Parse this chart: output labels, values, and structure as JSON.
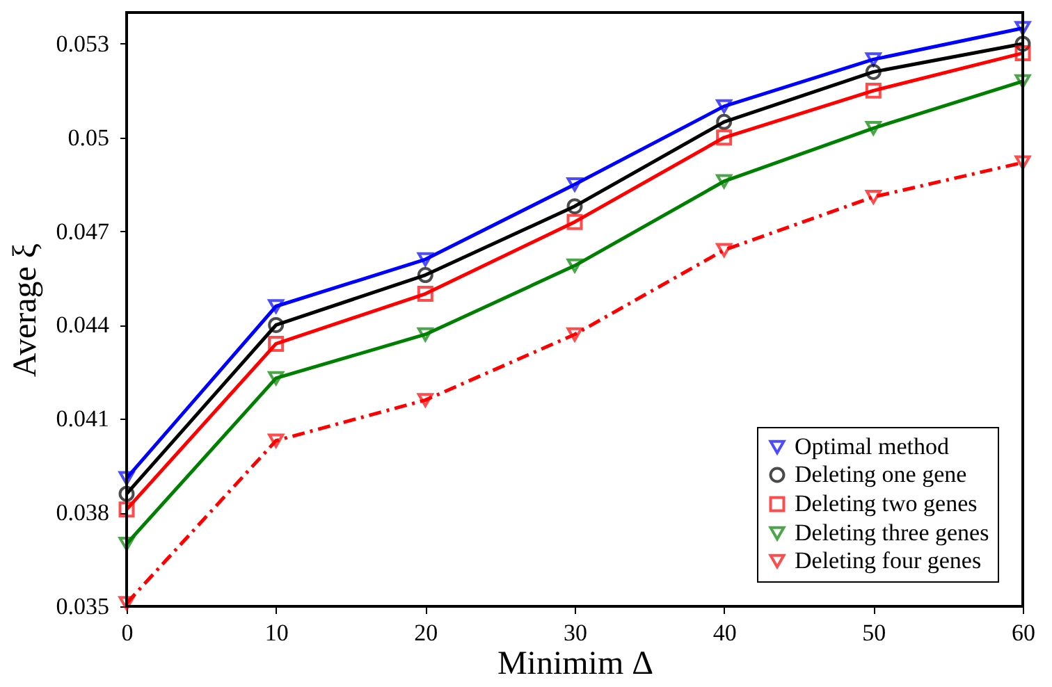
{
  "chart_data": {
    "type": "line",
    "xlabel": "Minimim Δ",
    "ylabel": "Average ξ",
    "x": [
      0,
      10,
      20,
      30,
      40,
      50,
      60
    ],
    "xlim": [
      0,
      60
    ],
    "xticks": [
      0,
      10,
      20,
      30,
      40,
      50,
      60
    ],
    "ylim": [
      0.035,
      0.054
    ],
    "yticks": [
      0.035,
      0.038,
      0.041,
      0.044,
      0.047,
      0.05,
      0.053
    ],
    "grid": false,
    "legend": "bottom right",
    "series": [
      {
        "name": "Optimal method",
        "color": "#0000ff",
        "marker": "triangle",
        "line_style": "solid",
        "values": [
          0.0391,
          0.0446,
          0.0461,
          0.0485,
          0.051,
          0.0525,
          0.0535
        ]
      },
      {
        "name": "Deleting one gene",
        "color": "#000000",
        "marker": "circle",
        "line_style": "solid",
        "values": [
          0.0386,
          0.044,
          0.0456,
          0.0478,
          0.0505,
          0.0521,
          0.053
        ]
      },
      {
        "name": "Deleting two genes",
        "color": "#ff0000",
        "marker": "square",
        "line_style": "solid",
        "values": [
          0.0381,
          0.0434,
          0.045,
          0.0473,
          0.05,
          0.0515,
          0.0527
        ]
      },
      {
        "name": "Deleting three genes",
        "color": "#008000",
        "marker": "triangle",
        "line_style": "solid",
        "values": [
          0.037,
          0.0423,
          0.0437,
          0.0459,
          0.0486,
          0.0503,
          0.0518
        ]
      },
      {
        "name": "Deleting four genes",
        "color": "#ff0000",
        "marker": "triangle",
        "line_style": "dashed",
        "values": [
          0.0351,
          0.0403,
          0.0416,
          0.0437,
          0.0464,
          0.0481,
          0.0492
        ]
      }
    ]
  }
}
